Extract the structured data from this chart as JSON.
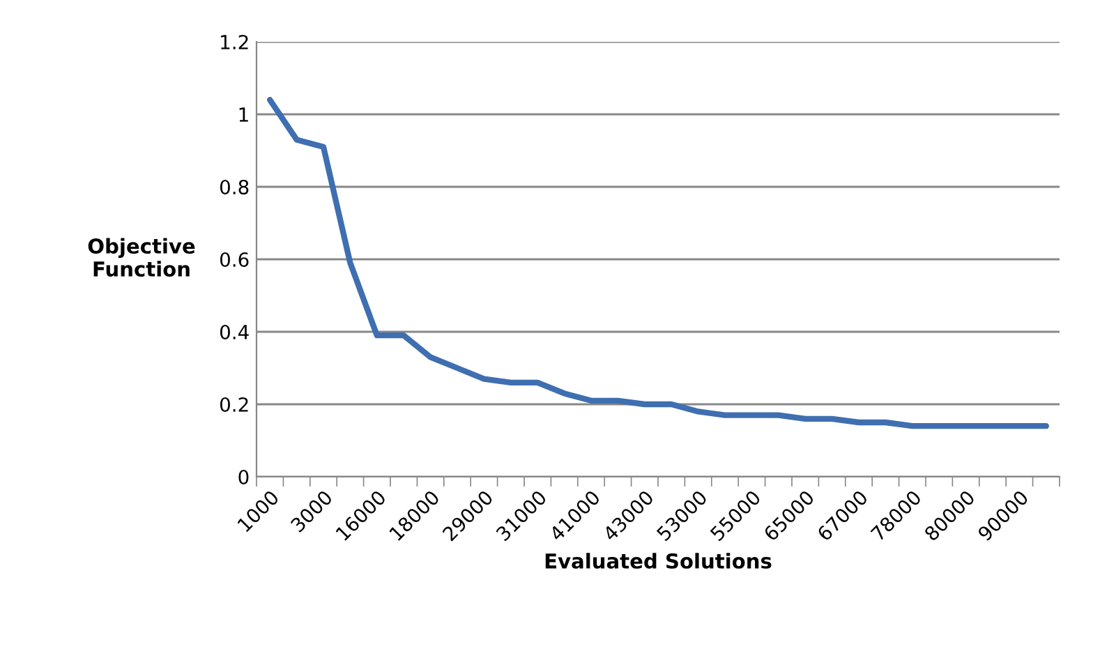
{
  "chart_data": {
    "type": "line",
    "xlabel": "Evaluated Solutions",
    "ylabel": "Objective\nFunction",
    "categories": [
      "1000",
      null,
      "3000",
      null,
      "16000",
      null,
      "18000",
      null,
      "29000",
      null,
      "31000",
      null,
      "41000",
      null,
      "43000",
      null,
      "53000",
      null,
      "55000",
      null,
      "65000",
      null,
      "67000",
      null,
      "78000",
      null,
      "80000",
      null,
      "90000",
      null
    ],
    "series": [
      {
        "color": "#3f6fb0",
        "values": [
          1.04,
          0.93,
          0.91,
          0.59,
          0.39,
          0.39,
          0.33,
          0.3,
          0.27,
          0.26,
          0.26,
          0.23,
          0.21,
          0.21,
          0.2,
          0.2,
          0.18,
          0.17,
          0.17,
          0.17,
          0.16,
          0.16,
          0.15,
          0.15,
          0.14,
          0.14,
          0.14,
          0.14,
          0.14,
          0.14
        ]
      }
    ],
    "ylim": [
      0,
      1.2
    ],
    "yticks": [
      0,
      0.2,
      0.4,
      0.6,
      0.8,
      1,
      1.2
    ],
    "grid": "y",
    "legend": false,
    "marker": "none",
    "line_style": "solid"
  }
}
